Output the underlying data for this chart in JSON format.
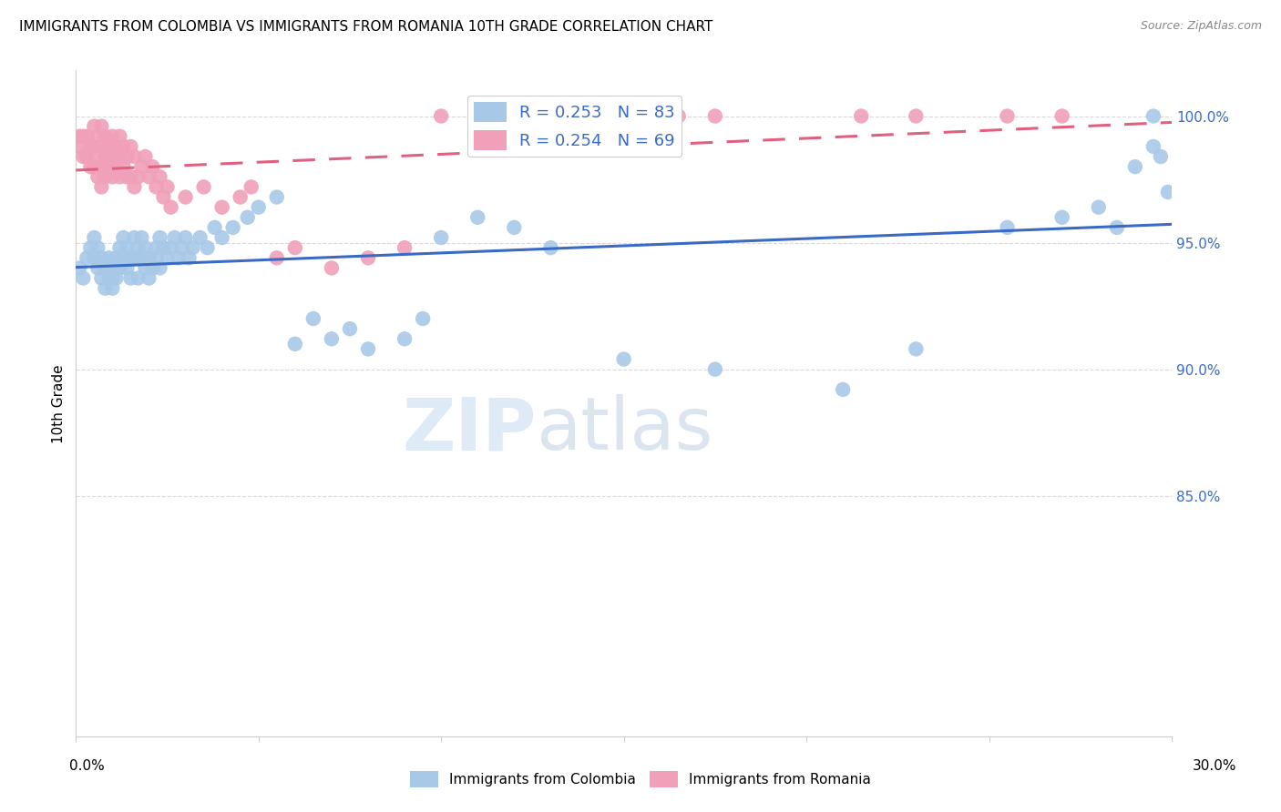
{
  "title": "IMMIGRANTS FROM COLOMBIA VS IMMIGRANTS FROM ROMANIA 10TH GRADE CORRELATION CHART",
  "source": "Source: ZipAtlas.com",
  "ylabel": "10th Grade",
  "xlim": [
    0.0,
    0.3
  ],
  "ylim": [
    0.755,
    1.018
  ],
  "watermark": "ZIPatlas",
  "legend_R_colombia": "0.253",
  "legend_N_colombia": "83",
  "legend_R_romania": "0.254",
  "legend_N_romania": "69",
  "colombia_color": "#A8C8E8",
  "romania_color": "#F0A0B8",
  "colombia_line_color": "#3A6BC4",
  "romania_line_color": "#E06080",
  "background_color": "#FFFFFF",
  "grid_color": "#D8D8D8",
  "colombia_x": [
    0.001,
    0.002,
    0.003,
    0.004,
    0.005,
    0.005,
    0.006,
    0.006,
    0.007,
    0.007,
    0.008,
    0.008,
    0.009,
    0.009,
    0.01,
    0.01,
    0.01,
    0.011,
    0.011,
    0.012,
    0.012,
    0.013,
    0.013,
    0.014,
    0.014,
    0.015,
    0.015,
    0.016,
    0.016,
    0.017,
    0.017,
    0.018,
    0.018,
    0.019,
    0.019,
    0.02,
    0.02,
    0.021,
    0.022,
    0.022,
    0.023,
    0.023,
    0.024,
    0.025,
    0.026,
    0.027,
    0.028,
    0.029,
    0.03,
    0.031,
    0.032,
    0.034,
    0.036,
    0.038,
    0.04,
    0.043,
    0.047,
    0.05,
    0.055,
    0.06,
    0.065,
    0.07,
    0.075,
    0.08,
    0.09,
    0.095,
    0.1,
    0.11,
    0.12,
    0.13,
    0.15,
    0.175,
    0.21,
    0.23,
    0.255,
    0.27,
    0.28,
    0.285,
    0.29,
    0.295,
    0.295,
    0.297,
    0.299
  ],
  "colombia_y": [
    0.94,
    0.936,
    0.944,
    0.948,
    0.952,
    0.944,
    0.948,
    0.94,
    0.944,
    0.936,
    0.94,
    0.932,
    0.936,
    0.944,
    0.94,
    0.936,
    0.932,
    0.944,
    0.936,
    0.94,
    0.948,
    0.944,
    0.952,
    0.948,
    0.94,
    0.944,
    0.936,
    0.952,
    0.944,
    0.948,
    0.936,
    0.952,
    0.944,
    0.94,
    0.948,
    0.944,
    0.936,
    0.94,
    0.948,
    0.944,
    0.952,
    0.94,
    0.948,
    0.944,
    0.948,
    0.952,
    0.944,
    0.948,
    0.952,
    0.944,
    0.948,
    0.952,
    0.948,
    0.956,
    0.952,
    0.956,
    0.96,
    0.964,
    0.968,
    0.91,
    0.92,
    0.912,
    0.916,
    0.908,
    0.912,
    0.92,
    0.952,
    0.96,
    0.956,
    0.948,
    0.904,
    0.9,
    0.892,
    0.908,
    0.956,
    0.96,
    0.964,
    0.956,
    0.98,
    0.988,
    1.0,
    0.984,
    0.97
  ],
  "romania_x": [
    0.001,
    0.001,
    0.002,
    0.002,
    0.003,
    0.003,
    0.004,
    0.004,
    0.005,
    0.005,
    0.005,
    0.006,
    0.006,
    0.006,
    0.007,
    0.007,
    0.007,
    0.007,
    0.008,
    0.008,
    0.008,
    0.009,
    0.009,
    0.01,
    0.01,
    0.01,
    0.011,
    0.011,
    0.012,
    0.012,
    0.012,
    0.013,
    0.013,
    0.014,
    0.014,
    0.015,
    0.015,
    0.016,
    0.016,
    0.017,
    0.018,
    0.019,
    0.02,
    0.021,
    0.022,
    0.023,
    0.024,
    0.025,
    0.026,
    0.03,
    0.035,
    0.04,
    0.045,
    0.048,
    0.055,
    0.06,
    0.07,
    0.08,
    0.09,
    0.1,
    0.115,
    0.12,
    0.155,
    0.165,
    0.175,
    0.215,
    0.23,
    0.255,
    0.27
  ],
  "romania_y": [
    0.992,
    0.988,
    0.992,
    0.984,
    0.992,
    0.984,
    0.988,
    0.98,
    0.996,
    0.988,
    0.98,
    0.992,
    0.984,
    0.976,
    0.996,
    0.988,
    0.98,
    0.972,
    0.992,
    0.984,
    0.976,
    0.988,
    0.98,
    0.992,
    0.984,
    0.976,
    0.988,
    0.98,
    0.992,
    0.984,
    0.976,
    0.988,
    0.98,
    0.984,
    0.976,
    0.988,
    0.976,
    0.984,
    0.972,
    0.976,
    0.98,
    0.984,
    0.976,
    0.98,
    0.972,
    0.976,
    0.968,
    0.972,
    0.964,
    0.968,
    0.972,
    0.964,
    0.968,
    0.972,
    0.944,
    0.948,
    0.94,
    0.944,
    0.948,
    1.0,
    1.0,
    1.0,
    1.0,
    1.0,
    1.0,
    1.0,
    1.0,
    1.0,
    1.0
  ]
}
